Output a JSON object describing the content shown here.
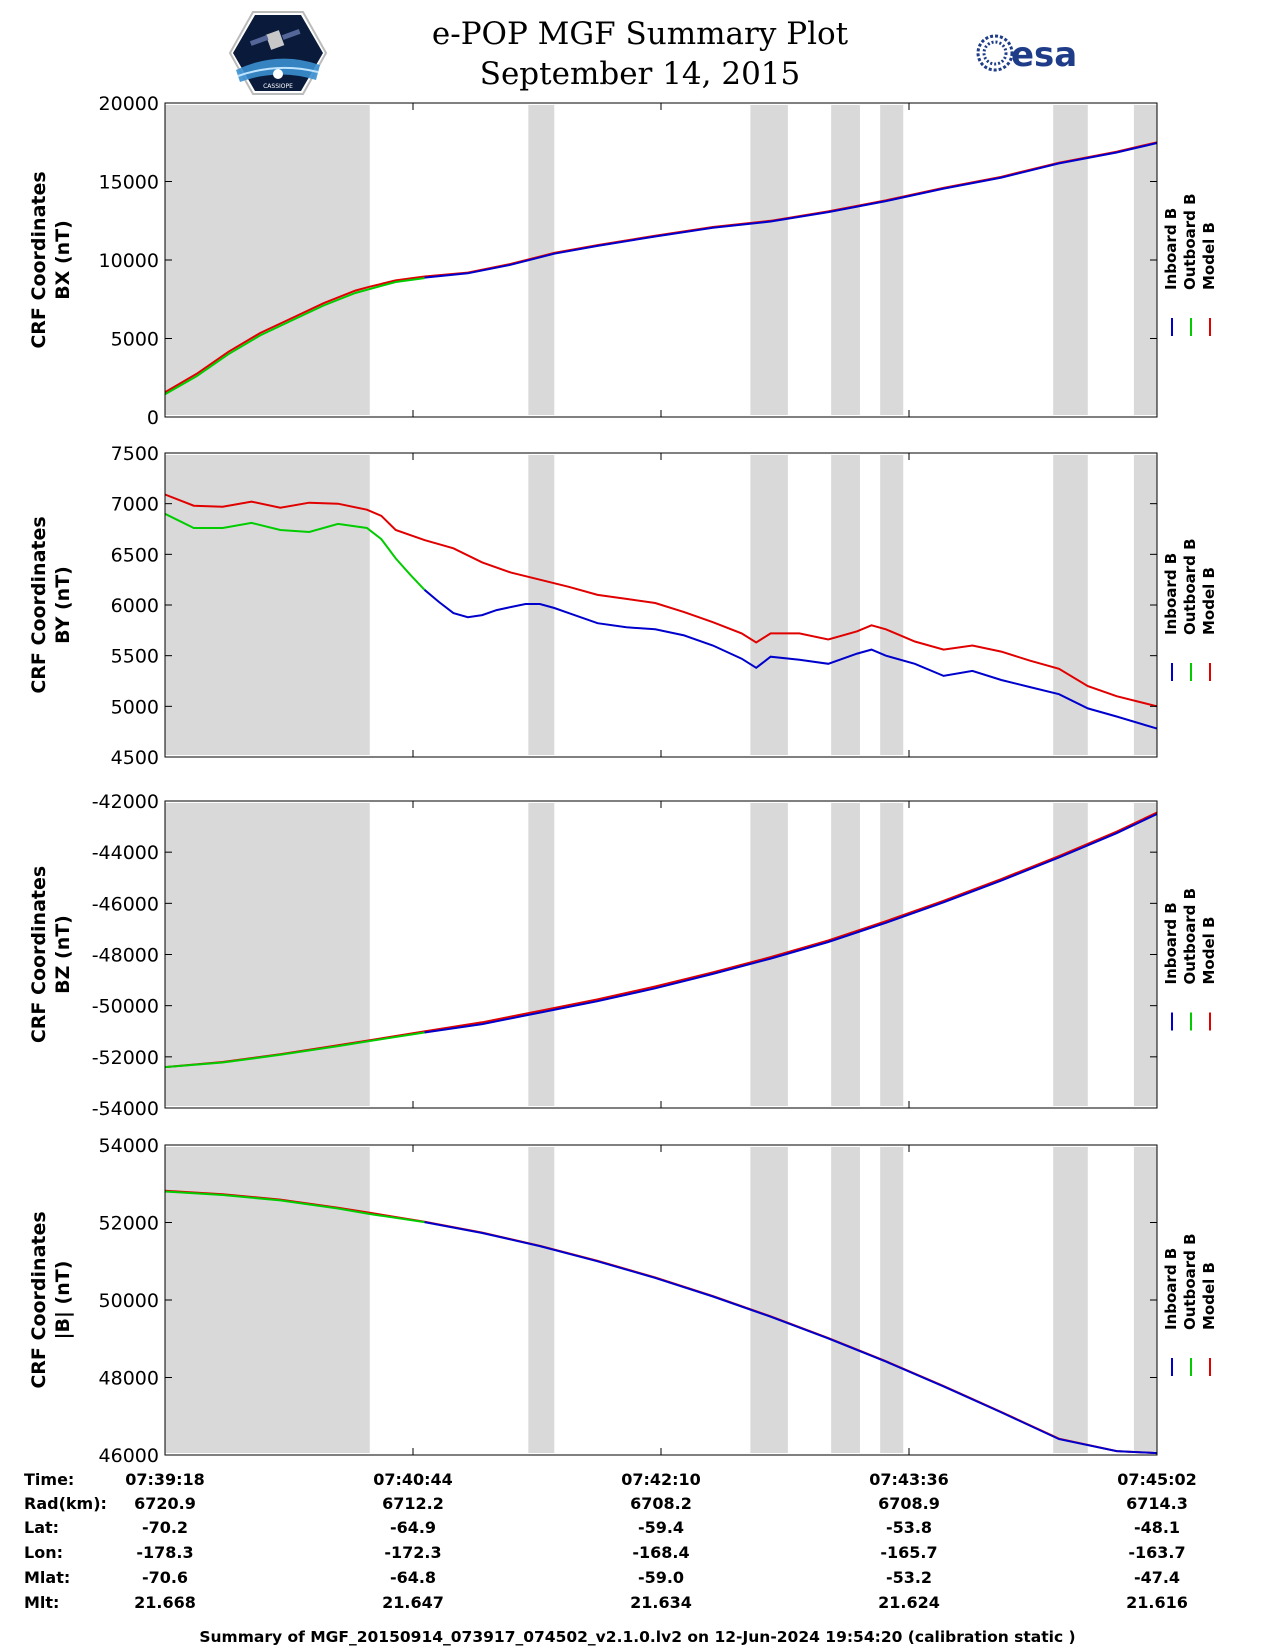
{
  "header": {
    "title": "e-POP MGF Summary Plot",
    "date": "September 14, 2015",
    "esa_logo_text": "esa",
    "cassiope_logo_text": "CASSIOPE"
  },
  "colors": {
    "inboard": "#0000cc",
    "outboard": "#00cc00",
    "model": "#e00000",
    "gap_shading": "#d9d9d9"
  },
  "legend": [
    "Inboard B",
    "Outboard B",
    "Model B"
  ],
  "chart_data": [
    {
      "type": "line",
      "ylabel_line1": "CRF Coordinates",
      "ylabel_line2": "BX (nT)",
      "ylim": [
        0,
        20000
      ],
      "yticks": [
        "0",
        "5000",
        "10000",
        "15000",
        "20000"
      ],
      "x_range_sec": [
        0,
        344
      ],
      "shaded_intervals_sec": [
        [
          0,
          71
        ],
        [
          126,
          135
        ],
        [
          203,
          216
        ],
        [
          231,
          241
        ],
        [
          248,
          256
        ],
        [
          308,
          320
        ],
        [
          336,
          344
        ]
      ],
      "series": [
        {
          "name": "Model B",
          "x": [
            0,
            11,
            22,
            33,
            44,
            55,
            66,
            71,
            80,
            90,
            105,
            120,
            135,
            150,
            170,
            190,
            210,
            230,
            250,
            270,
            290,
            310,
            330,
            344
          ],
          "values": [
            1580,
            2750,
            4150,
            5350,
            6300,
            7250,
            8050,
            8300,
            8700,
            8950,
            9200,
            9750,
            10450,
            10950,
            11550,
            12100,
            12500,
            13100,
            13800,
            14600,
            15300,
            16200,
            16900,
            17500
          ]
        },
        {
          "name": "Outboard B",
          "x": [
            0,
            11,
            22,
            33,
            44,
            55,
            66,
            71,
            80,
            90
          ],
          "values": [
            1450,
            2600,
            4000,
            5200,
            6150,
            7100,
            7900,
            8150,
            8600,
            8850
          ]
        },
        {
          "name": "Inboard B",
          "x": [
            90,
            105,
            120,
            135,
            150,
            170,
            190,
            210,
            230,
            250,
            270,
            290,
            310,
            330,
            344
          ],
          "values": [
            8880,
            9150,
            9700,
            10400,
            10900,
            11500,
            12050,
            12450,
            13050,
            13750,
            14550,
            15250,
            16150,
            16850,
            17450
          ]
        }
      ]
    },
    {
      "type": "line",
      "ylabel_line1": "CRF Coordinates",
      "ylabel_line2": "BY (nT)",
      "ylim": [
        4500,
        7500
      ],
      "yticks": [
        "4500",
        "5000",
        "5500",
        "6000",
        "6500",
        "7000",
        "7500"
      ],
      "x_range_sec": [
        0,
        344
      ],
      "shaded_intervals_sec": [
        [
          0,
          71
        ],
        [
          126,
          135
        ],
        [
          203,
          216
        ],
        [
          231,
          241
        ],
        [
          248,
          256
        ],
        [
          308,
          320
        ],
        [
          336,
          344
        ]
      ],
      "series": [
        {
          "name": "Model B",
          "x": [
            0,
            10,
            20,
            30,
            40,
            50,
            60,
            70,
            75,
            80,
            90,
            100,
            110,
            120,
            130,
            140,
            150,
            160,
            170,
            180,
            190,
            200,
            205,
            210,
            220,
            230,
            240,
            245,
            250,
            260,
            270,
            280,
            290,
            300,
            310,
            320,
            330,
            344
          ],
          "values": [
            7090,
            6980,
            6970,
            7020,
            6960,
            7010,
            7000,
            6940,
            6880,
            6740,
            6640,
            6560,
            6420,
            6320,
            6250,
            6180,
            6100,
            6060,
            6020,
            5930,
            5830,
            5720,
            5630,
            5720,
            5720,
            5660,
            5740,
            5800,
            5760,
            5640,
            5560,
            5600,
            5540,
            5450,
            5370,
            5200,
            5100,
            5000
          ]
        },
        {
          "name": "Outboard B",
          "x": [
            0,
            10,
            20,
            30,
            40,
            50,
            60,
            70,
            75,
            80,
            85,
            90
          ],
          "values": [
            6900,
            6760,
            6760,
            6810,
            6740,
            6720,
            6800,
            6760,
            6650,
            6460,
            6300,
            6150
          ]
        },
        {
          "name": "Inboard B",
          "x": [
            90,
            95,
            100,
            105,
            110,
            115,
            120,
            125,
            130,
            135,
            140,
            150,
            160,
            170,
            180,
            190,
            200,
            205,
            210,
            220,
            230,
            240,
            245,
            250,
            260,
            270,
            280,
            290,
            300,
            310,
            320,
            330,
            344
          ],
          "values": [
            6150,
            6030,
            5920,
            5880,
            5900,
            5950,
            5980,
            6010,
            6010,
            5970,
            5920,
            5820,
            5780,
            5760,
            5700,
            5600,
            5470,
            5380,
            5490,
            5460,
            5420,
            5520,
            5560,
            5500,
            5420,
            5300,
            5350,
            5260,
            5190,
            5120,
            4980,
            4900,
            4780
          ]
        }
      ]
    },
    {
      "type": "line",
      "ylabel_line1": "CRF Coordinates",
      "ylabel_line2": "BZ (nT)",
      "ylim": [
        -54000,
        -42000
      ],
      "yticks": [
        "-54000",
        "-52000",
        "-50000",
        "-48000",
        "-46000",
        "-44000",
        "-42000"
      ],
      "x_range_sec": [
        0,
        344
      ],
      "shaded_intervals_sec": [
        [
          0,
          71
        ],
        [
          126,
          135
        ],
        [
          203,
          216
        ],
        [
          231,
          241
        ],
        [
          248,
          256
        ],
        [
          308,
          320
        ],
        [
          336,
          344
        ]
      ],
      "series": [
        {
          "name": "Model B",
          "x": [
            0,
            20,
            40,
            60,
            71,
            90,
            110,
            130,
            150,
            170,
            190,
            210,
            230,
            250,
            270,
            290,
            310,
            330,
            344
          ],
          "values": [
            -52400,
            -52200,
            -51900,
            -51550,
            -51350,
            -51000,
            -50650,
            -50200,
            -49750,
            -49250,
            -48700,
            -48100,
            -47450,
            -46700,
            -45900,
            -45050,
            -44150,
            -43200,
            -42450
          ]
        },
        {
          "name": "Outboard B",
          "x": [
            0,
            20,
            40,
            60,
            71,
            90
          ],
          "values": [
            -52400,
            -52220,
            -51920,
            -51580,
            -51380,
            -51050
          ]
        },
        {
          "name": "Inboard B",
          "x": [
            90,
            110,
            130,
            150,
            170,
            190,
            210,
            230,
            250,
            270,
            290,
            310,
            330,
            344
          ],
          "values": [
            -51050,
            -50720,
            -50270,
            -49820,
            -49320,
            -48760,
            -48160,
            -47510,
            -46760,
            -45960,
            -45110,
            -44210,
            -43260,
            -42510
          ]
        }
      ]
    },
    {
      "type": "line",
      "ylabel_line1": "CRF Coordinates",
      "ylabel_line2": "|B| (nT)",
      "ylim": [
        46000,
        54000
      ],
      "yticks": [
        "46000",
        "48000",
        "50000",
        "52000",
        "54000"
      ],
      "x_range_sec": [
        0,
        344
      ],
      "shaded_intervals_sec": [
        [
          0,
          71
        ],
        [
          126,
          135
        ],
        [
          203,
          216
        ],
        [
          231,
          241
        ],
        [
          248,
          256
        ],
        [
          308,
          320
        ],
        [
          336,
          344
        ]
      ],
      "series": [
        {
          "name": "Model B",
          "x": [
            0,
            20,
            40,
            60,
            71,
            90,
            110,
            130,
            150,
            170,
            190,
            210,
            230,
            250,
            270,
            290,
            310,
            330,
            344
          ],
          "values": [
            52820,
            52730,
            52590,
            52380,
            52250,
            52020,
            51740,
            51400,
            51010,
            50580,
            50100,
            49580,
            49020,
            48420,
            47780,
            47110,
            46420,
            46100,
            46050
          ]
        },
        {
          "name": "Outboard B",
          "x": [
            0,
            20,
            40,
            60,
            71,
            90
          ],
          "values": [
            52800,
            52710,
            52570,
            52360,
            52220,
            52010
          ]
        },
        {
          "name": "Inboard B",
          "x": [
            90,
            110,
            130,
            150,
            170,
            190,
            210,
            230,
            250,
            270,
            290,
            310,
            330,
            344
          ],
          "values": [
            52010,
            51730,
            51390,
            51000,
            50570,
            50090,
            49570,
            49010,
            48410,
            47770,
            47100,
            46410,
            46100,
            46050
          ]
        }
      ]
    }
  ],
  "ephemeris": {
    "labels": [
      "Time:",
      "Rad(km):",
      "Lat:",
      "Lon:",
      "Mlat:",
      "Mlt:"
    ],
    "columns": [
      [
        "07:39:18",
        "6720.9",
        "-70.2",
        "-178.3",
        "-70.6",
        "21.668"
      ],
      [
        "07:40:44",
        "6712.2",
        "-64.9",
        "-172.3",
        "-64.8",
        "21.647"
      ],
      [
        "07:42:10",
        "6708.2",
        "-59.4",
        "-168.4",
        "-59.0",
        "21.634"
      ],
      [
        "07:43:36",
        "6708.9",
        "-53.8",
        "-165.7",
        "-53.2",
        "21.624"
      ],
      [
        "07:45:02",
        "6714.3",
        "-48.1",
        "-163.7",
        "-47.4",
        "21.616"
      ]
    ]
  },
  "footer": "Summary of MGF_20150914_073917_074502_v2.1.0.lv2 on 12-Jun-2024 19:54:20 (calibration static )"
}
